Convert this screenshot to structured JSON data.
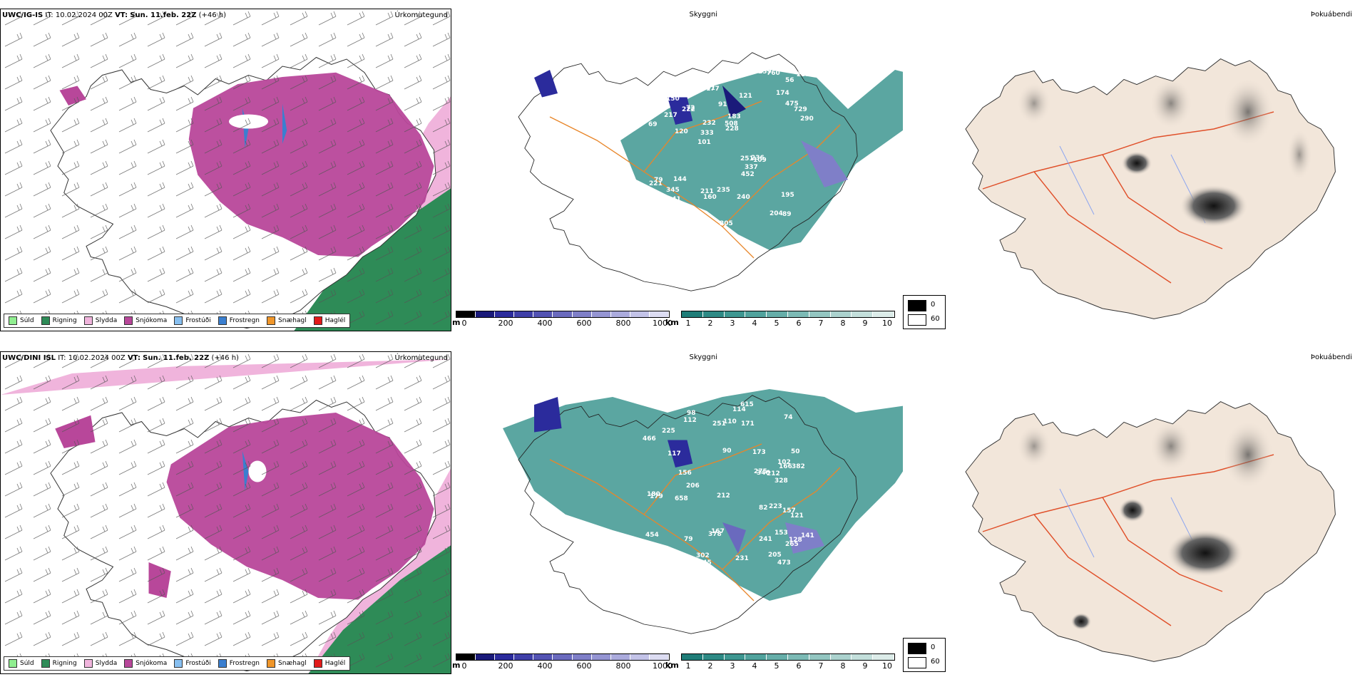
{
  "rows": [
    {
      "model": "UWC/IG-IS",
      "it_label": "IT:",
      "it_value": "10.02.2024 00Z",
      "vt_label": "VT:",
      "vt_value": "Sun. 11.feb. 22Z",
      "lead": "(+46 h)",
      "ceiling_numbers": [
        "89",
        "69",
        "56",
        "101",
        "121",
        "102",
        "101",
        "91",
        "79",
        "72",
        "87",
        "141",
        "177",
        "183",
        "109",
        "185",
        "455",
        "290",
        "251",
        "475",
        "333",
        "211",
        "232",
        "443",
        "136",
        "144",
        "204",
        "195",
        "236",
        "205",
        "222",
        "217",
        "452",
        "999",
        "729",
        "508",
        "170",
        "160",
        "228",
        "221",
        "174",
        "255",
        "337",
        "240",
        "345",
        "200",
        "220",
        "235",
        "760",
        "171",
        "120",
        "113",
        "150",
        "259"
      ]
    },
    {
      "model": "UWC/DINI ISL",
      "it_label": "IT:",
      "it_value": "10.02.2024 00Z",
      "vt_label": "VT:",
      "vt_value": "Sun. 11.feb. 22Z",
      "lead": "(+46 h)",
      "ceiling_numbers": [
        "153",
        "50",
        "128",
        "90",
        "245",
        "98",
        "102",
        "79",
        "74",
        "117",
        "382",
        "466",
        "328",
        "245",
        "454",
        "225",
        "265",
        "112",
        "167",
        "166",
        "180",
        "179",
        "231",
        "275",
        "302",
        "378",
        "114",
        "171",
        "173",
        "141",
        "658",
        "241",
        "200",
        "212",
        "157",
        "205",
        "346",
        "251",
        "473",
        "206",
        "223",
        "212",
        "110",
        "156",
        "121",
        "82",
        "204",
        "615"
      ]
    }
  ],
  "panels": {
    "precip_type": "Úrkomutegund",
    "visibility": "Skyggni",
    "fog": "Þokuábendi"
  },
  "precip_legend": [
    {
      "label": "Súld",
      "color": "#90ee90"
    },
    {
      "label": "Rigning",
      "color": "#2e8b57"
    },
    {
      "label": "Slydda",
      "color": "#f0b4dc"
    },
    {
      "label": "Snjókoma",
      "color": "#b8479a"
    },
    {
      "label": "Frostúði",
      "color": "#87bff0"
    },
    {
      "label": "Frostregn",
      "color": "#3a7fd0"
    },
    {
      "label": "Snæhagl",
      "color": "#f0962a"
    },
    {
      "label": "Haglél",
      "color": "#e21a1a"
    }
  ],
  "ceiling_scale": {
    "unit": "m",
    "ticks": [
      "0",
      "200",
      "400",
      "600",
      "800",
      "1000"
    ],
    "colors": [
      "#000000",
      "#1a1a7a",
      "#2b2b9c",
      "#3f3fa8",
      "#5353b3",
      "#6a6abe",
      "#7f7fc8",
      "#9595d3",
      "#ababdd",
      "#c3c3e8",
      "#dcdcf2"
    ]
  },
  "visibility_scale": {
    "unit": "km",
    "ticks": [
      "1",
      "2",
      "3",
      "4",
      "5",
      "6",
      "7",
      "8",
      "9",
      "10"
    ],
    "colors": [
      "#1f7d78",
      "#2e8a85",
      "#3e9791",
      "#51a39d",
      "#66aea9",
      "#7cbab5",
      "#93c6c1",
      "#abd2ce",
      "#c3dfdb",
      "#dcece9"
    ]
  },
  "fog_legend": [
    {
      "label": "0",
      "color": "#000000"
    },
    {
      "label": "60",
      "color": "#ffffff"
    }
  ]
}
